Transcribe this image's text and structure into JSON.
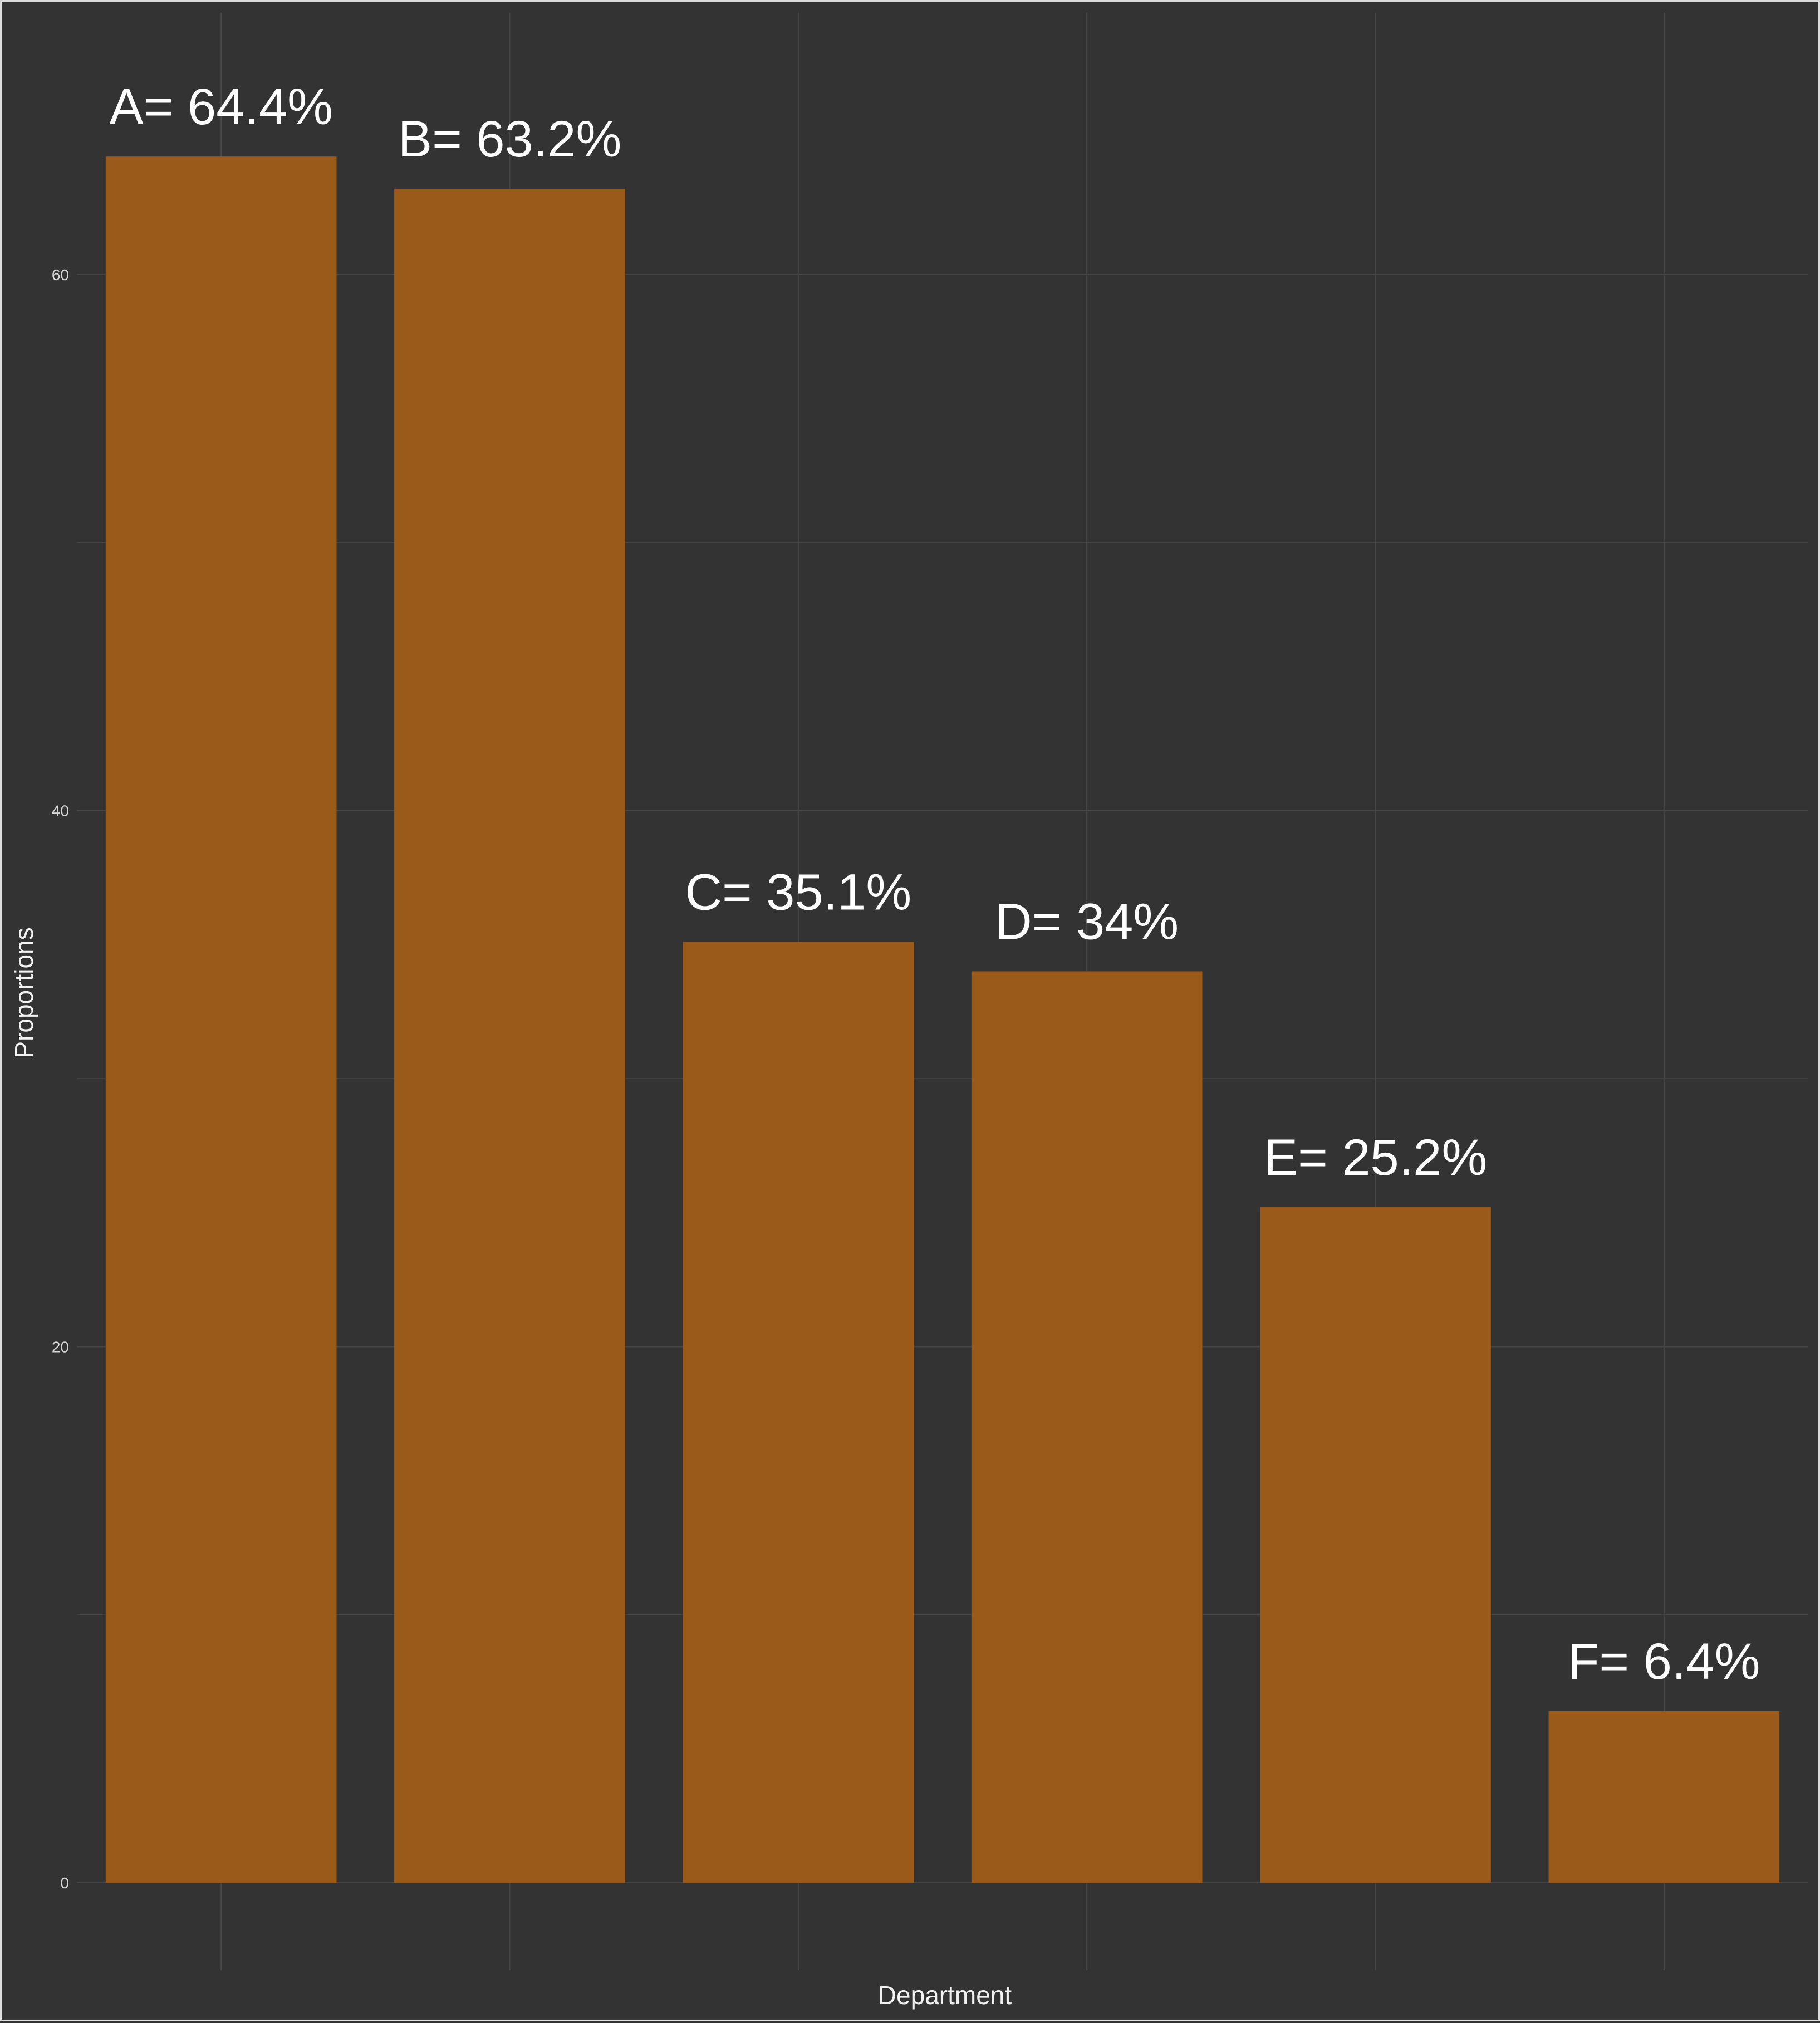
{
  "chart_data": {
    "type": "bar",
    "categories": [
      "A",
      "B",
      "C",
      "D",
      "E",
      "F"
    ],
    "values": [
      64.4,
      63.2,
      35.1,
      34,
      25.2,
      6.4
    ],
    "bar_labels": [
      "A= 64.4%",
      "B= 63.2%",
      "C= 35.1%",
      "D= 34%",
      "E= 25.2%",
      "F= 6.4%"
    ],
    "title": "",
    "xlabel": "Department",
    "ylabel": "Proportions",
    "ylim": [
      0,
      70
    ],
    "y_ticks": [
      0,
      20,
      40,
      60
    ],
    "y_tick_labels": [
      "0",
      "20",
      "40",
      "60"
    ],
    "show_x_tick_labels": false,
    "grid": true,
    "legend": "none",
    "colors": {
      "background": "#333333",
      "bar": "#9a5a19",
      "grid": "#474747",
      "text": "#ffffff",
      "border": "#dcdcdc"
    }
  }
}
